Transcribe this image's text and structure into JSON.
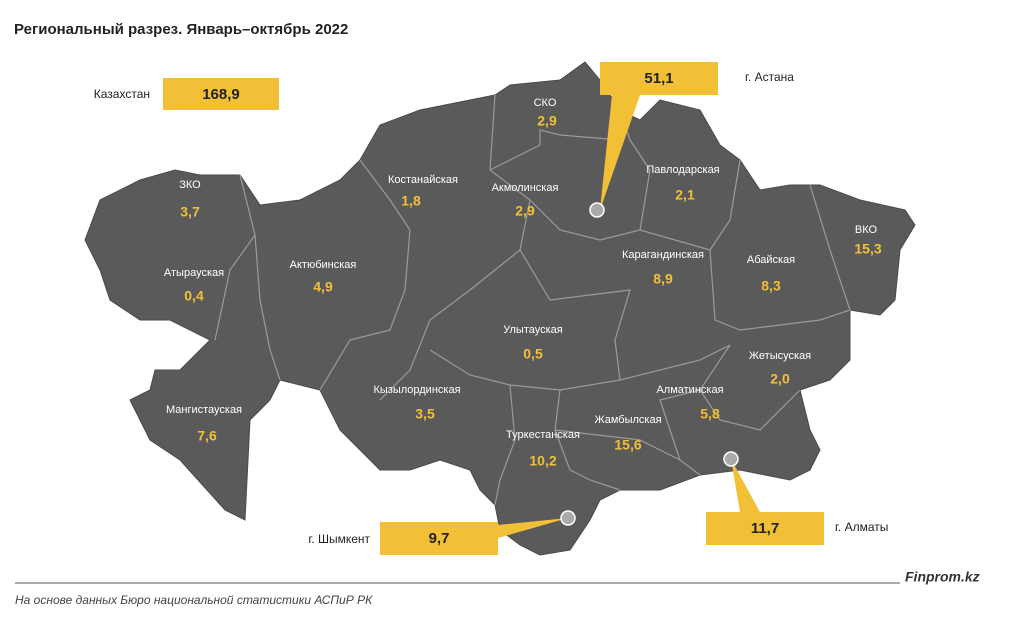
{
  "title": "Региональный разрез. Январь–октябрь 2022",
  "total": {
    "label": "Казахстан",
    "value": "168,9"
  },
  "cities": [
    {
      "label": "г. Астана",
      "value": "51,1"
    },
    {
      "label": "г. Шымкент",
      "value": "9,7"
    },
    {
      "label": "г. Алматы",
      "value": "11,7"
    }
  ],
  "regions": [
    {
      "name": "СКО",
      "value": "2,9"
    },
    {
      "name": "ЗКО",
      "value": "3,7"
    },
    {
      "name": "Костанайская",
      "value": "1,8"
    },
    {
      "name": "Акмолинская",
      "value": "2,9"
    },
    {
      "name": "Павлодарская",
      "value": "2,1"
    },
    {
      "name": "ВКО",
      "value": "15,3"
    },
    {
      "name": "Атырауская",
      "value": "0,4"
    },
    {
      "name": "Актюбинская",
      "value": "4,9"
    },
    {
      "name": "Карагандинская",
      "value": "8,9"
    },
    {
      "name": "Абайская",
      "value": "8,3"
    },
    {
      "name": "Улытауская",
      "value": "0,5"
    },
    {
      "name": "Жетысуская",
      "value": "2,0"
    },
    {
      "name": "Кызылординская",
      "value": "3,5"
    },
    {
      "name": "Алматинская",
      "value": "5,8"
    },
    {
      "name": "Мангистауская",
      "value": "7,6"
    },
    {
      "name": "Туркестанская",
      "value": "10,2"
    },
    {
      "name": "Жамбылская",
      "value": "15,6"
    }
  ],
  "footer": {
    "source": "На основе данных Бюро национальной статистики АСПиР РК",
    "brand": "Finprom.kz"
  }
}
